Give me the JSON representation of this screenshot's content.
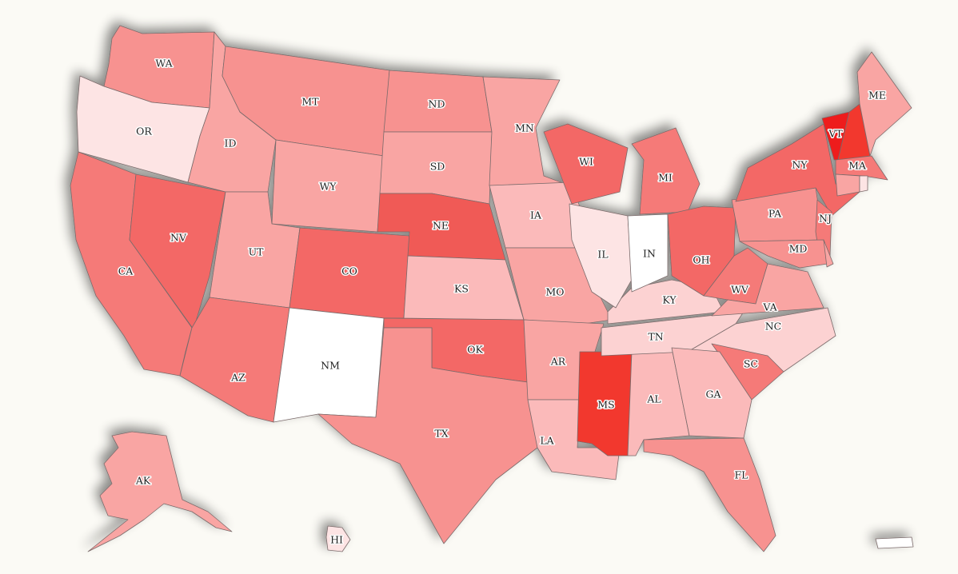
{
  "colors": {
    "background": "#fbfaf5",
    "border": "#7a6a6a",
    "levels": {
      "l0": "#ffffff",
      "l1": "#fde4e4",
      "l2": "#fcd2d2",
      "l3": "#fbbaba",
      "l4": "#f9a5a3",
      "l5": "#f79290",
      "l6": "#f57a78",
      "l7": "#f36866",
      "l8": "#f05a56",
      "l9": "#f2382f",
      "l10": "#ee1d1a"
    }
  },
  "states": [
    {
      "code": "WA",
      "level": "l5"
    },
    {
      "code": "OR",
      "level": "l1"
    },
    {
      "code": "CA",
      "level": "l6"
    },
    {
      "code": "NV",
      "level": "l7"
    },
    {
      "code": "ID",
      "level": "l4"
    },
    {
      "code": "MT",
      "level": "l5"
    },
    {
      "code": "WY",
      "level": "l4"
    },
    {
      "code": "UT",
      "level": "l4"
    },
    {
      "code": "AZ",
      "level": "l6"
    },
    {
      "code": "CO",
      "level": "l7"
    },
    {
      "code": "NM",
      "level": "l0"
    },
    {
      "code": "ND",
      "level": "l5"
    },
    {
      "code": "SD",
      "level": "l4"
    },
    {
      "code": "NE",
      "level": "l8"
    },
    {
      "code": "KS",
      "level": "l3"
    },
    {
      "code": "OK",
      "level": "l7"
    },
    {
      "code": "TX",
      "level": "l5"
    },
    {
      "code": "MN",
      "level": "l4"
    },
    {
      "code": "IA",
      "level": "l3"
    },
    {
      "code": "MO",
      "level": "l4"
    },
    {
      "code": "AR",
      "level": "l4"
    },
    {
      "code": "LA",
      "level": "l3"
    },
    {
      "code": "MS",
      "level": "l9"
    },
    {
      "code": "AL",
      "level": "l3"
    },
    {
      "code": "TN",
      "level": "l2"
    },
    {
      "code": "KY",
      "level": "l2"
    },
    {
      "code": "IL",
      "level": "l1"
    },
    {
      "code": "IN",
      "level": "l0"
    },
    {
      "code": "WI",
      "level": "l7"
    },
    {
      "code": "MI",
      "level": "l6"
    },
    {
      "code": "OH",
      "level": "l7"
    },
    {
      "code": "WV",
      "level": "l6"
    },
    {
      "code": "VA",
      "level": "l4"
    },
    {
      "code": "NC",
      "level": "l2"
    },
    {
      "code": "SC",
      "level": "l6"
    },
    {
      "code": "GA",
      "level": "l3"
    },
    {
      "code": "FL",
      "level": "l5"
    },
    {
      "code": "PA",
      "level": "l5"
    },
    {
      "code": "NY",
      "level": "l7"
    },
    {
      "code": "NJ",
      "level": "l6"
    },
    {
      "code": "MD",
      "level": "l5"
    },
    {
      "code": "DE",
      "level": "l4"
    },
    {
      "code": "VT",
      "level": "l10"
    },
    {
      "code": "NH",
      "level": "l9"
    },
    {
      "code": "ME",
      "level": "l4"
    },
    {
      "code": "MA",
      "level": "l6"
    },
    {
      "code": "CT",
      "level": "l4"
    },
    {
      "code": "RI",
      "level": "l1"
    },
    {
      "code": "AK",
      "level": "l4"
    },
    {
      "code": "HI",
      "level": "l1"
    },
    {
      "code": "PR",
      "level": "l0"
    }
  ],
  "labels": [
    "WA",
    "OR",
    "CA",
    "NV",
    "ID",
    "MT",
    "WY",
    "UT",
    "AZ",
    "CO",
    "NM",
    "ND",
    "SD",
    "NE",
    "KS",
    "OK",
    "TX",
    "MN",
    "IA",
    "MO",
    "AR",
    "LA",
    "MS",
    "AL",
    "TN",
    "KY",
    "IL",
    "IN",
    "WI",
    "MI",
    "OH",
    "WV",
    "VA",
    "NC",
    "SC",
    "GA",
    "FL",
    "PA",
    "NY",
    "NJ",
    "MD",
    "VT",
    "ME",
    "MA",
    "AK",
    "HI"
  ]
}
